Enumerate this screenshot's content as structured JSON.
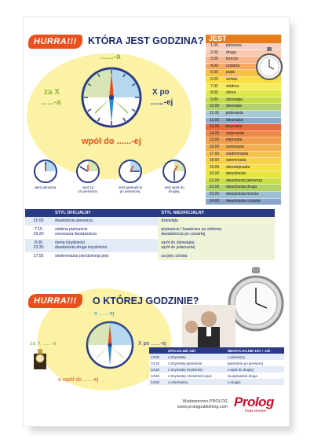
{
  "top": {
    "badge": "HURRA!!!",
    "title": "KTÓRA JEST GODZINA?",
    "jest": "JEST",
    "hours": [
      {
        "t": "1.00",
        "w": "pierwsza",
        "c": "#f6d0c4"
      },
      {
        "t": "2.00",
        "w": "druga",
        "c": "#f8c8b0"
      },
      {
        "t": "3.00",
        "w": "trzecia",
        "c": "#f6b690"
      },
      {
        "t": "4.00",
        "w": "czwarta",
        "c": "#f6a860"
      },
      {
        "t": "5.00",
        "w": "piąta",
        "c": "#f8c040"
      },
      {
        "t": "6.00",
        "w": "szósta",
        "c": "#f8de40"
      },
      {
        "t": "7.00",
        "w": "siódma",
        "c": "#f5ec5a"
      },
      {
        "t": "8.00",
        "w": "ósma",
        "c": "#dfe84a"
      },
      {
        "t": "9.00",
        "w": "dziewiąta",
        "c": "#c4dc4a"
      },
      {
        "t": "10.00",
        "w": "dziesiąta",
        "c": "#b2d06e"
      },
      {
        "t": "11.00",
        "w": "jedenasta",
        "c": "#a8c8d6"
      },
      {
        "t": "12.00",
        "w": "dwunasta",
        "c": "#8fa8cc"
      },
      {
        "t": "13.00",
        "w": "trzynasta",
        "c": "#e86a3e"
      },
      {
        "t": "14.00",
        "w": "czternasta",
        "c": "#ee8a46"
      },
      {
        "t": "15.00",
        "w": "piętnasta",
        "c": "#f29e4a"
      },
      {
        "t": "16.00",
        "w": "szesnasta",
        "c": "#f4b04e"
      },
      {
        "t": "17.00",
        "w": "siedemnasta",
        "c": "#f6c24e"
      },
      {
        "t": "18.00",
        "w": "osiemnasta",
        "c": "#f6d24a"
      },
      {
        "t": "19.00",
        "w": "dziewiętnasta",
        "c": "#f5e046"
      },
      {
        "t": "20.00",
        "w": "dwudziesta",
        "c": "#e6e640"
      },
      {
        "t": "21.00",
        "w": "dwudziesta pierwsza",
        "c": "#cadf48"
      },
      {
        "t": "22.00",
        "w": "dwudziesta druga",
        "c": "#b0d266"
      },
      {
        "t": "23.00",
        "w": "dwudziesta trzecia",
        "c": "#9fc0d2"
      },
      {
        "t": "24.00",
        "w": "dwudziesta czwarta",
        "c": "#8aa4cc"
      }
    ],
    "clock": {
      "top": "......-a",
      "left1": "za X",
      "left2": "......-a",
      "right1": "X po",
      "right2": "......-ej",
      "bottom": "wpół do ......-ej"
    },
    "small_clocks": [
      [
        "Jest pierwsza."
      ],
      [
        "Jest za",
        "10 pierwsza."
      ],
      [
        "Jest piętnaście",
        "po pierwszej."
      ],
      [
        "Jest wpół do",
        "drugiej."
      ]
    ]
  },
  "table": {
    "headers": [
      "STYL OFICJALNY",
      "STYL NIEOFICJALNY"
    ],
    "rows": [
      {
        "time": [
          "21:00"
        ],
        "off": [
          "dwudziesta pierwsza"
        ],
        "inf": [
          "dziewiąta"
        ]
      },
      {
        "time": [
          "7:15",
          "16:20"
        ],
        "off": [
          "siódma piętnaście",
          "szesnasta dwadzieścia"
        ],
        "inf": [
          "piętnaście / kwadrans po siódmej",
          "dwadzieścia po czwartej"
        ]
      },
      {
        "time": [
          "8:30",
          "22:30"
        ],
        "off": [
          "ósma trzydzieści",
          "dwudziesta druga trzydzieści"
        ],
        "inf": [
          "wpół do dziewiątej",
          "wpół do jedenastej"
        ]
      },
      {
        "time": [
          "17:55"
        ],
        "off": [
          "siedemnasta pięćdziesiąt pięć"
        ],
        "inf": [
          "za pięć szósta"
        ]
      }
    ]
  },
  "bottom": {
    "badge": "HURRA!!!",
    "title": "O KTÓREJ GODZINIE?",
    "clock": {
      "top": "o ......-ej",
      "left": "za X ......-a",
      "right": "X po ......-ej",
      "bottom": "o wpół do ......-ej"
    },
    "headers": [
      "OFICJALNIE 24h",
      "NIEOFICJALNIE 12h + 12h"
    ],
    "rows": [
      {
        "t": "13:00",
        "a": "o trzynastej",
        "b": "o pierwszej"
      },
      {
        "t": "13:15",
        "a": "o trzynastej piętnaście",
        "b": "piętnaście po pierwszej"
      },
      {
        "t": "13:30",
        "a": "o trzynastej trzydzieści",
        "b": "o wpół do drugiej"
      },
      {
        "t": "13:45",
        "a": "o trzynastej czterdzieści pięć",
        "b": "za piętnaście druga"
      },
      {
        "t": "14:00",
        "a": "o czternastej",
        "b": "o drugiej"
      }
    ]
  },
  "footer": {
    "line1": "Wydawnictwo PROLOG",
    "line2": "www.prologpublishing.com",
    "logo": "Prolog",
    "logo_sub": "PUBLISHING"
  }
}
